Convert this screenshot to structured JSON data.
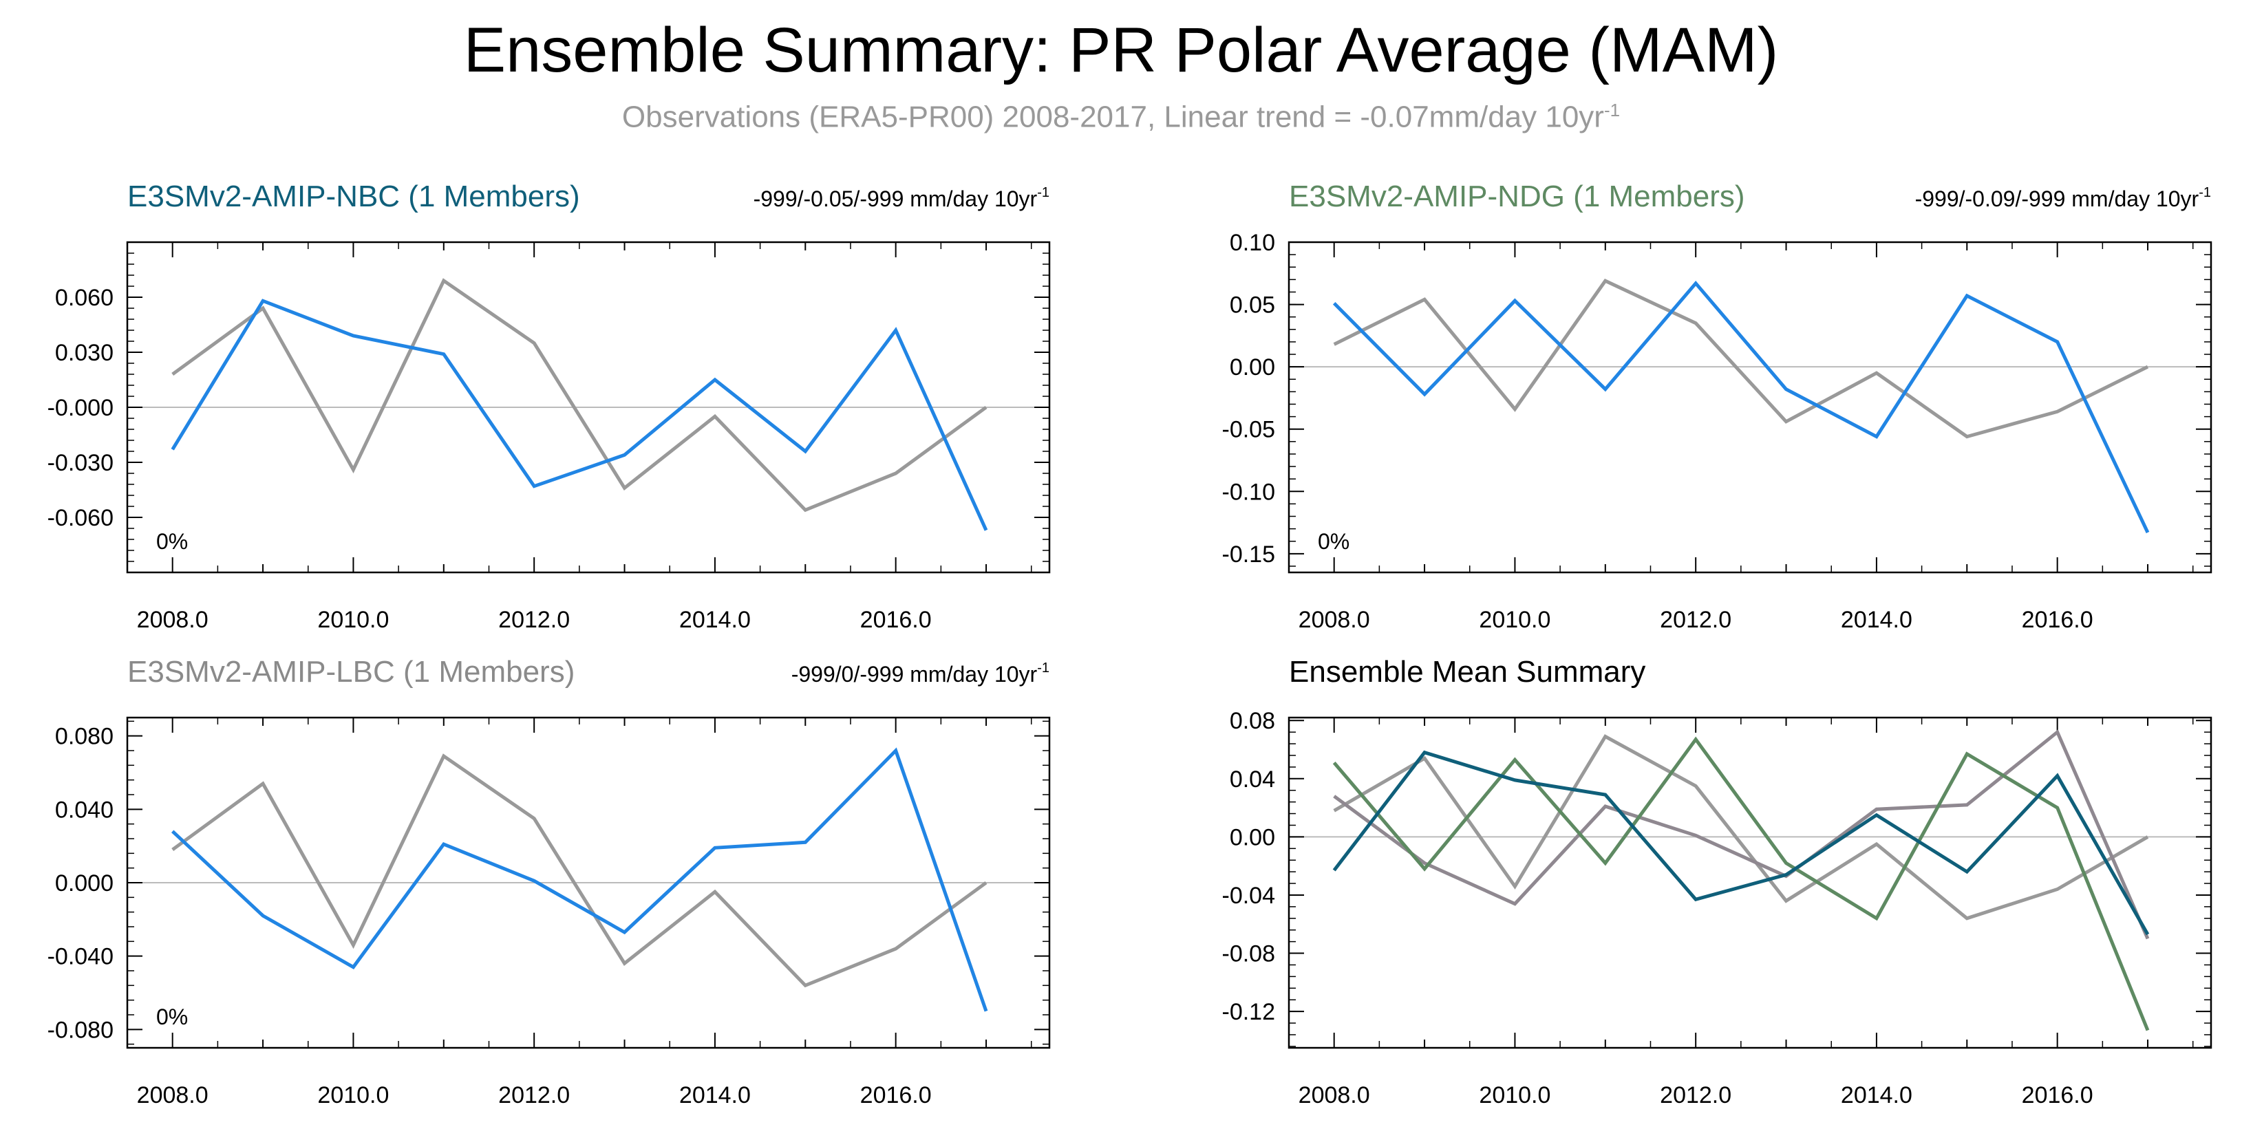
{
  "title": "Ensemble Summary: PR Polar Average (MAM)",
  "subtitle": {
    "main": "Observations (ERA5-PR00) 2008-2017, Linear trend = -0.07mm/day 10yr",
    "sup": "-1"
  },
  "colors": {
    "obs": "#999999",
    "model": "#2185e4",
    "nbc": "#0f5f7a",
    "ndg": "#5e8a62",
    "lbc": "#8a8a8a",
    "zero_line": "#bbbbbb",
    "lbc_mean": "#8f8890"
  },
  "chart_data": [
    {
      "type": "line",
      "title": "E3SMv2-AMIP-NBC (1 Members)",
      "title_color": "#0f5f7a",
      "stats": "-999/-0.05/-999 mm/day 10yr",
      "stats_sup": "-1",
      "annotation": "0%",
      "x": [
        2008,
        2009,
        2010,
        2011,
        2012,
        2013,
        2014,
        2015,
        2016,
        2017
      ],
      "xlim": [
        2007.5,
        2017.7
      ],
      "ylim": [
        -0.09,
        0.09
      ],
      "xticks": [
        2008,
        2010,
        2012,
        2014,
        2016
      ],
      "xtick_labels": [
        "2008.0",
        "2010.0",
        "2012.0",
        "2014.0",
        "2016.0"
      ],
      "yticks": [
        0.06,
        0.03,
        0,
        -0.03,
        -0.06
      ],
      "ytick_labels": [
        "0.060",
        "0.030",
        "-0.000",
        "-0.030",
        "-0.060"
      ],
      "series": [
        {
          "color": "#999999",
          "values": [
            0.018,
            0.054,
            -0.034,
            0.069,
            0.035,
            -0.044,
            -0.005,
            -0.056,
            -0.036,
            0.0
          ]
        },
        {
          "color": "#2185e4",
          "values": [
            -0.023,
            0.058,
            0.039,
            0.029,
            -0.043,
            -0.026,
            0.015,
            -0.024,
            0.042,
            -0.067
          ]
        }
      ]
    },
    {
      "type": "line",
      "title": "E3SMv2-AMIP-NDG (1 Members)",
      "title_color": "#5e8a62",
      "stats": "-999/-0.09/-999 mm/day 10yr",
      "stats_sup": "-1",
      "annotation": "0%",
      "x": [
        2008,
        2009,
        2010,
        2011,
        2012,
        2013,
        2014,
        2015,
        2016,
        2017
      ],
      "xlim": [
        2007.5,
        2017.7
      ],
      "ylim": [
        -0.165,
        0.1
      ],
      "xticks": [
        2008,
        2010,
        2012,
        2014,
        2016
      ],
      "xtick_labels": [
        "2008.0",
        "2010.0",
        "2012.0",
        "2014.0",
        "2016.0"
      ],
      "yticks": [
        0.1,
        0.05,
        0,
        -0.05,
        -0.1,
        -0.15
      ],
      "ytick_labels": [
        "0.10",
        "0.05",
        "0.00",
        "-0.05",
        "-0.10",
        "-0.15"
      ],
      "series": [
        {
          "color": "#999999",
          "values": [
            0.018,
            0.054,
            -0.034,
            0.069,
            0.035,
            -0.044,
            -0.005,
            -0.056,
            -0.036,
            0.0
          ]
        },
        {
          "color": "#2185e4",
          "values": [
            0.051,
            -0.022,
            0.053,
            -0.018,
            0.067,
            -0.018,
            -0.056,
            0.057,
            0.02,
            -0.133
          ]
        }
      ]
    },
    {
      "type": "line",
      "title": "E3SMv2-AMIP-LBC (1 Members)",
      "title_color": "#8a8a8a",
      "stats": "-999/0/-999 mm/day 10yr",
      "stats_sup": "-1",
      "annotation": "0%",
      "x": [
        2008,
        2009,
        2010,
        2011,
        2012,
        2013,
        2014,
        2015,
        2016,
        2017
      ],
      "xlim": [
        2007.5,
        2017.7
      ],
      "ylim": [
        -0.09,
        0.09
      ],
      "xticks": [
        2008,
        2010,
        2012,
        2014,
        2016
      ],
      "xtick_labels": [
        "2008.0",
        "2010.0",
        "2012.0",
        "2014.0",
        "2016.0"
      ],
      "yticks": [
        0.08,
        0.04,
        0,
        -0.04,
        -0.08
      ],
      "ytick_labels": [
        "0.080",
        "0.040",
        "0.000",
        "-0.040",
        "-0.080"
      ],
      "series": [
        {
          "color": "#999999",
          "values": [
            0.018,
            0.054,
            -0.034,
            0.069,
            0.035,
            -0.044,
            -0.005,
            -0.056,
            -0.036,
            0.0
          ]
        },
        {
          "color": "#2185e4",
          "values": [
            0.028,
            -0.018,
            -0.046,
            0.021,
            0.001,
            -0.027,
            0.019,
            0.022,
            0.072,
            -0.07
          ]
        }
      ]
    },
    {
      "type": "line",
      "title": "Ensemble Mean Summary",
      "title_color": "#000000",
      "stats": "",
      "stats_sup": "",
      "annotation": "",
      "x": [
        2008,
        2009,
        2010,
        2011,
        2012,
        2013,
        2014,
        2015,
        2016,
        2017
      ],
      "xlim": [
        2007.5,
        2017.7
      ],
      "ylim": [
        -0.145,
        0.082
      ],
      "xticks": [
        2008,
        2010,
        2012,
        2014,
        2016
      ],
      "xtick_labels": [
        "2008.0",
        "2010.0",
        "2012.0",
        "2014.0",
        "2016.0"
      ],
      "yticks": [
        0.08,
        0.04,
        0,
        -0.04,
        -0.08,
        -0.12
      ],
      "ytick_labels": [
        "0.08",
        "0.04",
        "0.00",
        "-0.04",
        "-0.08",
        "-0.12"
      ],
      "series": [
        {
          "color": "#999999",
          "values": [
            0.018,
            0.054,
            -0.034,
            0.069,
            0.035,
            -0.044,
            -0.005,
            -0.056,
            -0.036,
            0.0
          ]
        },
        {
          "color": "#8f8890",
          "values": [
            0.028,
            -0.018,
            -0.046,
            0.021,
            0.001,
            -0.027,
            0.019,
            0.022,
            0.072,
            -0.07
          ]
        },
        {
          "color": "#5e8a62",
          "values": [
            0.051,
            -0.022,
            0.053,
            -0.018,
            0.067,
            -0.018,
            -0.056,
            0.057,
            0.02,
            -0.133
          ]
        },
        {
          "color": "#0f5f7a",
          "values": [
            -0.023,
            0.058,
            0.039,
            0.029,
            -0.043,
            -0.026,
            0.015,
            -0.024,
            0.042,
            -0.067
          ]
        }
      ]
    }
  ]
}
